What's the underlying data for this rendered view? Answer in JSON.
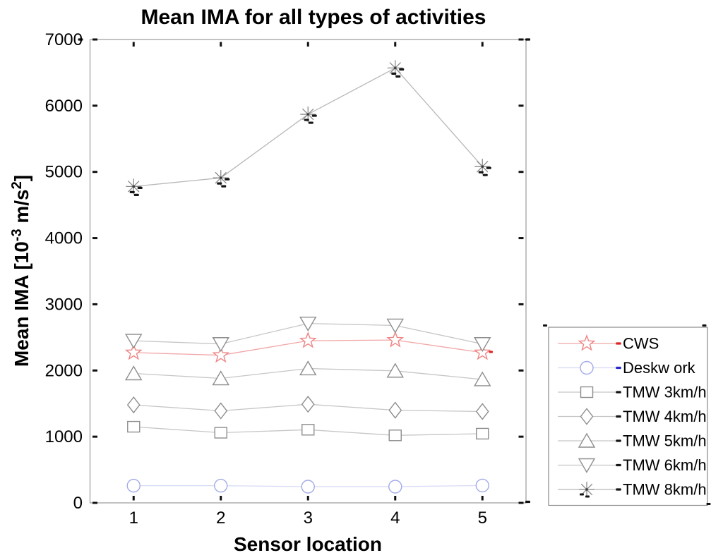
{
  "title": "Mean IMA for all types of activities",
  "chart_data": {
    "type": "line",
    "title": "Mean IMA for all types of activities",
    "xlabel": "Sensor location",
    "ylabel": "Mean IMA [10^-3 m/s^2]",
    "ylabel_parts": [
      {
        "t": "Mean IMA [10",
        "sup": false
      },
      {
        "t": "-3",
        "sup": true
      },
      {
        "t": " m/s",
        "sup": false
      },
      {
        "t": "2",
        "sup": true
      },
      {
        "t": "]",
        "sup": false
      }
    ],
    "x": [
      1,
      2,
      3,
      4,
      5
    ],
    "xtick_labels": [
      "1",
      "2",
      "3",
      "4",
      "5"
    ],
    "yticks": [
      0,
      1000,
      2000,
      3000,
      4000,
      5000,
      6000,
      7000
    ],
    "ytick_labels": [
      "0",
      "1000",
      "2000",
      "3000",
      "4000",
      "5000",
      "6000",
      "7000"
    ],
    "xlim": [
      0.5,
      5.5
    ],
    "ylim": [
      0,
      7000
    ],
    "grid": false,
    "legend_position": "outside-right-bottom",
    "series": [
      {
        "name": "CWS",
        "marker": "star",
        "marker_color": "#ee8484",
        "line_color": "#f2a6a6",
        "dash_color": "#dd2222",
        "values": [
          2270,
          2230,
          2450,
          2460,
          2270
        ],
        "point_dashes": "last"
      },
      {
        "name": "Deskw ork",
        "marker": "circle",
        "marker_color": "#a2aae8",
        "line_color": "#d6daf5",
        "dash_color": "#2626cc",
        "values": [
          260,
          260,
          245,
          245,
          262
        ],
        "point_dashes": "none"
      },
      {
        "name": "TMW 3km/h",
        "marker": "square",
        "marker_color": "#8e8e8e",
        "line_color": "#c6c6c6",
        "dash_color": "#151515",
        "values": [
          1150,
          1060,
          1105,
          1020,
          1045
        ],
        "point_dashes": "none"
      },
      {
        "name": "TMW 4km/h",
        "marker": "diamond",
        "marker_color": "#8e8e8e",
        "line_color": "#c6c6c6",
        "dash_color": "#151515",
        "values": [
          1480,
          1390,
          1490,
          1400,
          1380
        ],
        "point_dashes": "none"
      },
      {
        "name": "TMW 5km/h",
        "marker": "triangle-up",
        "marker_color": "#8e8e8e",
        "line_color": "#c6c6c6",
        "dash_color": "#151515",
        "values": [
          1955,
          1880,
          2030,
          1995,
          1865
        ],
        "point_dashes": "none"
      },
      {
        "name": "TMW 6km/h",
        "marker": "triangle-down",
        "marker_color": "#8e8e8e",
        "line_color": "#c6c6c6",
        "dash_color": "#151515",
        "values": [
          2450,
          2400,
          2710,
          2680,
          2400
        ],
        "point_dashes": "none"
      },
      {
        "name": "TMW 8km/h",
        "marker": "asterisk",
        "marker_color": "#8a8a8a",
        "line_color": "#b8b8b8",
        "dash_color": "#151515",
        "values": [
          4780,
          4910,
          5870,
          6570,
          5080
        ],
        "point_dashes": "all"
      }
    ],
    "axis_color": "#9a9a9a",
    "tick_color": "#111111"
  }
}
